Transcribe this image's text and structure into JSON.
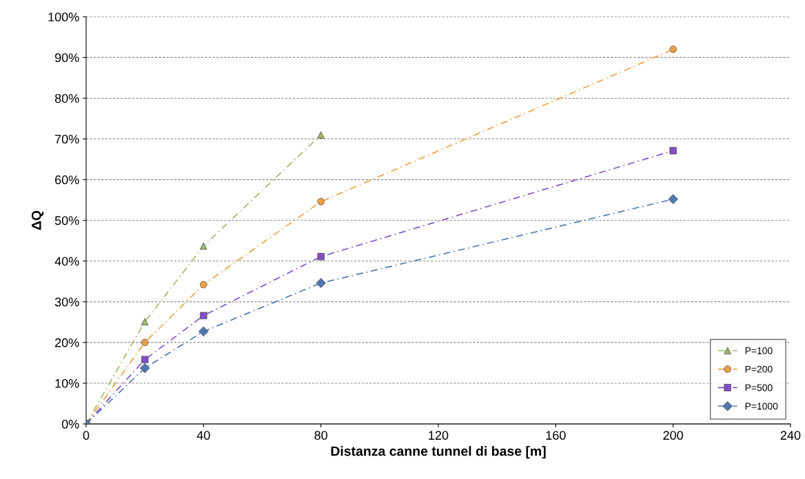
{
  "chart_data": {
    "type": "line",
    "xlabel": "Distanza canne tunnel di base [m]",
    "ylabel": "ΔQ",
    "x": [
      0,
      20,
      40,
      80,
      200
    ],
    "series": [
      {
        "name": "P=100",
        "color": "#9bb86a",
        "marker": "triangle",
        "values": [
          0,
          25.1,
          43.7,
          71.0,
          null
        ]
      },
      {
        "name": "P=200",
        "color": "#f0a040",
        "marker": "circle",
        "values": [
          0,
          20.0,
          34.2,
          54.6,
          92.0
        ]
      },
      {
        "name": "P=500",
        "color": "#8050c8",
        "marker": "square",
        "values": [
          0,
          15.8,
          26.6,
          41.1,
          67.1
        ]
      },
      {
        "name": "P=1000",
        "color": "#4f78b0",
        "marker": "diamond",
        "values": [
          0,
          13.7,
          22.7,
          34.6,
          55.2
        ]
      }
    ],
    "xlim": [
      0,
      240
    ],
    "xticks": [
      0,
      40,
      80,
      120,
      160,
      200,
      240
    ],
    "ylim": [
      0,
      100
    ],
    "yticks": [
      {
        "value": 0,
        "label": "0%"
      },
      {
        "value": 10,
        "label": "10%"
      },
      {
        "value": 20,
        "label": "20%"
      },
      {
        "value": 30,
        "label": "30%"
      },
      {
        "value": 40,
        "label": "40%"
      },
      {
        "value": 50,
        "label": "50%"
      },
      {
        "value": 60,
        "label": "60%"
      },
      {
        "value": 70,
        "label": "70%"
      },
      {
        "value": 80,
        "label": "80%"
      },
      {
        "value": 90,
        "label": "90%"
      },
      {
        "value": 100,
        "label": "100%"
      }
    ],
    "grid": "y",
    "legend": "bottom right",
    "line_style": "dashed"
  }
}
